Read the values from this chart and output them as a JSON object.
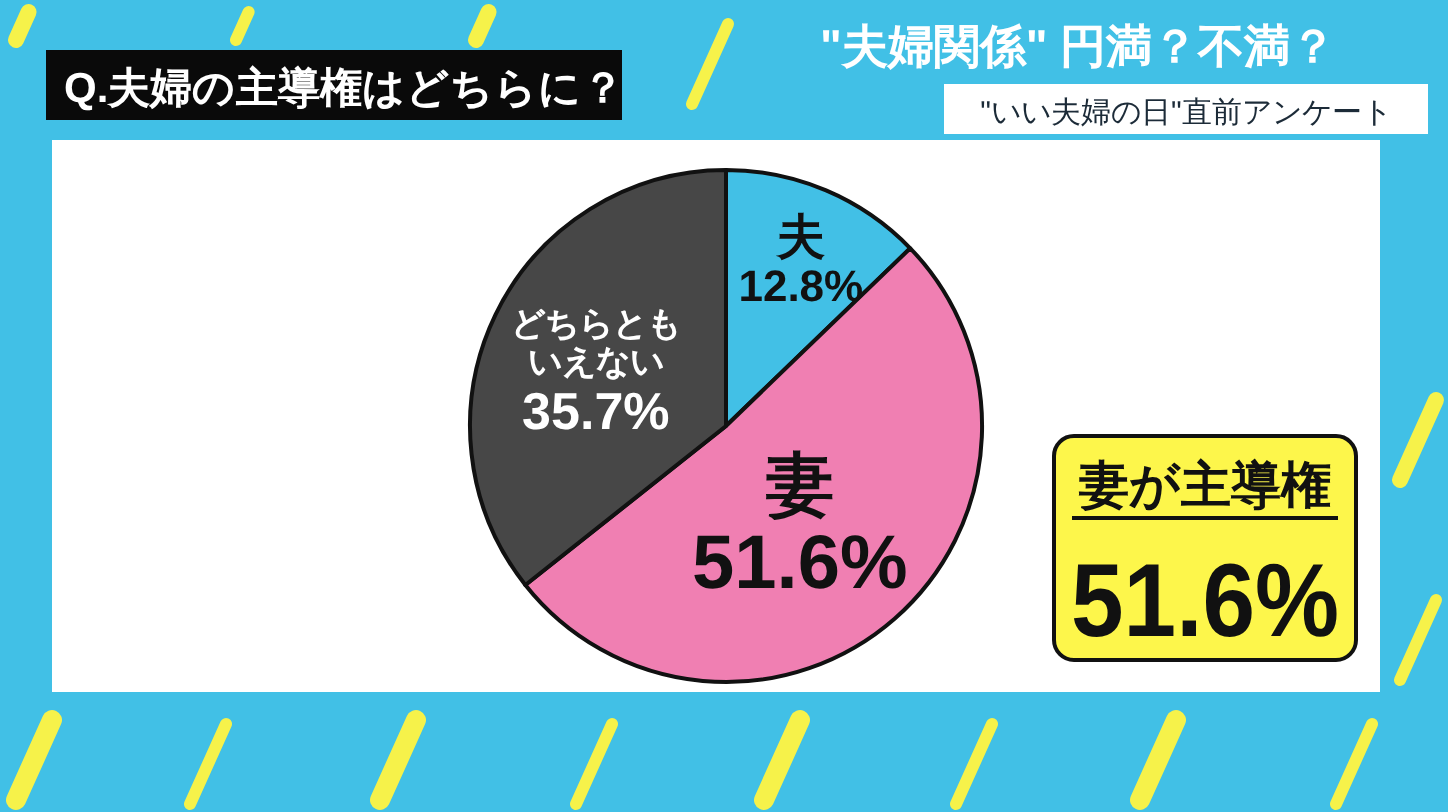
{
  "chart_data": {
    "type": "pie",
    "title": "Q.夫婦の主導権はどちらに？",
    "subtitle": "\"いい夫婦の日\"直前アンケート",
    "categories": [
      "夫",
      "妻",
      "どちらともいえない"
    ],
    "values": [
      12.8,
      51.6,
      35.7
    ],
    "colors": [
      "#42c0e6",
      "#f07fb2",
      "#474747"
    ],
    "value_labels": [
      "12.8%",
      "51.6%",
      "35.7%"
    ],
    "annotations": [
      "\"夫婦関係\" 円満？不満？",
      "妻が主導権",
      "51.6%"
    ]
  }
}
